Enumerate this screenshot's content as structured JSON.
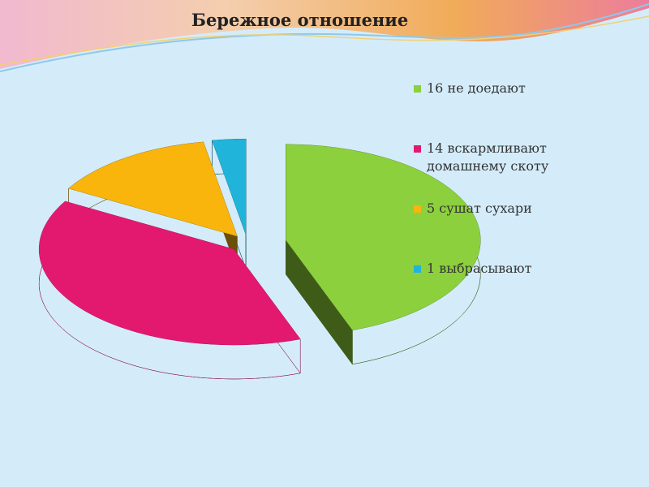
{
  "chart_data": {
    "type": "pie3d",
    "title": "Бережное отношение",
    "categories": [
      "16 не доедают",
      "14 вскармливают домашнему скоту",
      "5 сушат сухари",
      "1 выбрасывают"
    ],
    "values": [
      16,
      14,
      5,
      1
    ],
    "colors": [
      "#8cd03e",
      "#e3196f",
      "#f9b50c",
      "#20b4da"
    ],
    "side_colors": [
      "#3e5c18",
      "#8c0f45",
      "#6b4f06",
      "#0c4f61"
    ],
    "legend": "right"
  }
}
